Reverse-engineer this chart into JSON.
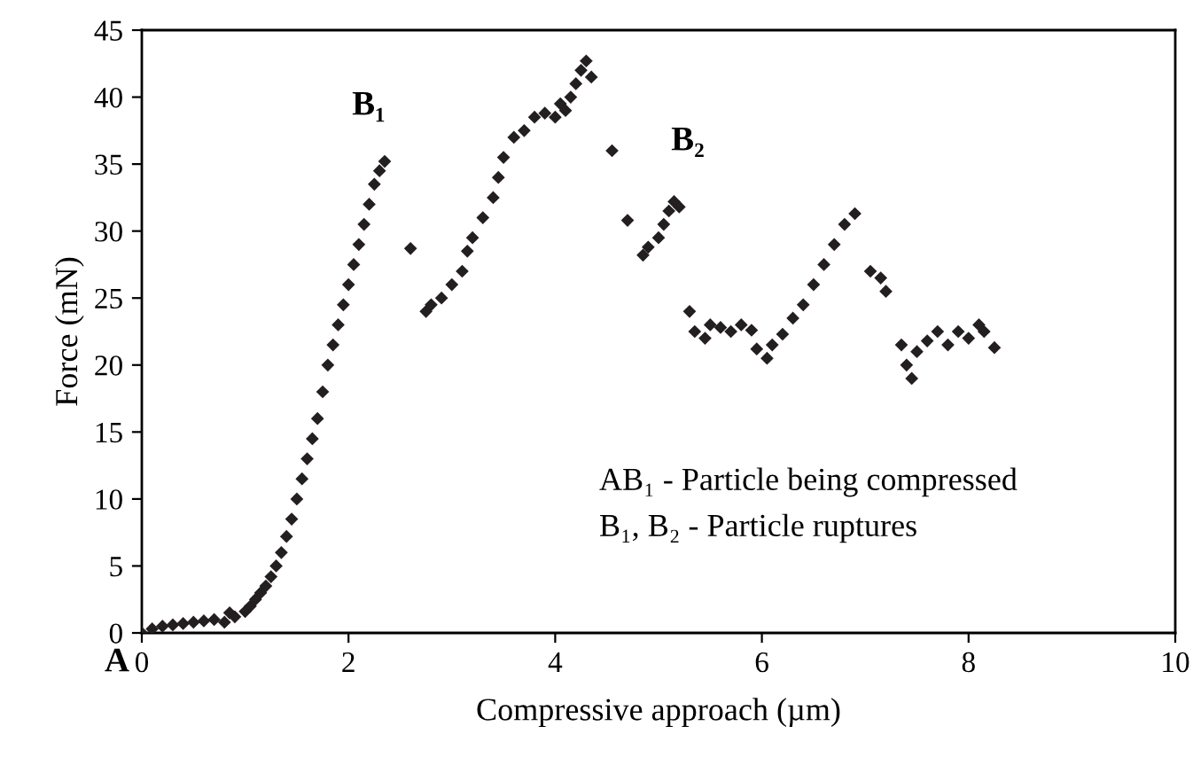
{
  "chart_data": {
    "type": "scatter",
    "xlabel": "Compressive approach (µm)",
    "ylabel": "Force (mN)",
    "xlim": [
      0,
      10
    ],
    "xticks": [
      0,
      2,
      4,
      6,
      8,
      10
    ],
    "ylim": [
      0,
      45
    ],
    "yticks": [
      0,
      5,
      10,
      15,
      20,
      25,
      30,
      35,
      40,
      45
    ],
    "grid": false,
    "legend": false,
    "marker": "diamond",
    "series": [
      {
        "color": "#231f20",
        "x": [
          0,
          0.1,
          0.2,
          0.3,
          0.4,
          0.5,
          0.6,
          0.7,
          0.8,
          0.85,
          0.9,
          1.0,
          1.05,
          1.1,
          1.15,
          1.2,
          1.25,
          1.3,
          1.35,
          1.4,
          1.45,
          1.5,
          1.55,
          1.6,
          1.65,
          1.7,
          1.75,
          1.8,
          1.85,
          1.9,
          1.95,
          2.0,
          2.05,
          2.1,
          2.15,
          2.2,
          2.25,
          2.3,
          2.35,
          2.6,
          2.75,
          2.8,
          2.9,
          3.0,
          3.1,
          3.15,
          3.2,
          3.3,
          3.4,
          3.45,
          3.5,
          3.6,
          3.7,
          3.8,
          3.9,
          4.0,
          4.05,
          4.1,
          4.15,
          4.2,
          4.25,
          4.3,
          4.35,
          4.55,
          4.7,
          4.85,
          4.9,
          5.0,
          5.05,
          5.1,
          5.15,
          5.2,
          5.3,
          5.35,
          5.45,
          5.5,
          5.6,
          5.7,
          5.8,
          5.9,
          5.95,
          6.05,
          6.1,
          6.2,
          6.3,
          6.4,
          6.5,
          6.6,
          6.7,
          6.8,
          6.9,
          7.05,
          7.15,
          7.2,
          7.35,
          7.4,
          7.45,
          7.5,
          7.6,
          7.7,
          7.8,
          7.9,
          8.0,
          8.1,
          8.15,
          8.25
        ],
        "values": [
          0,
          0.3,
          0.5,
          0.6,
          0.7,
          0.8,
          0.9,
          1.0,
          0.8,
          1.5,
          1.2,
          1.6,
          2.0,
          2.5,
          3.0,
          3.5,
          4.2,
          5.0,
          6.0,
          7.2,
          8.5,
          10,
          11.5,
          13,
          14.5,
          16,
          18,
          20,
          21.5,
          23,
          24.5,
          26,
          27.5,
          29,
          30.5,
          32,
          33.5,
          34.5,
          35.2,
          28.7,
          24,
          24.5,
          25,
          26,
          27,
          28.5,
          29.5,
          31,
          32.5,
          34,
          35.5,
          37,
          37.5,
          38.5,
          38.8,
          38.5,
          39.5,
          39.0,
          40,
          41,
          42,
          42.7,
          41.5,
          36,
          30.8,
          28.2,
          28.8,
          29.5,
          30.5,
          31.5,
          32.2,
          31.8,
          24,
          22.5,
          22,
          23,
          22.8,
          22.5,
          23,
          22.6,
          21.2,
          20.5,
          21.5,
          22.3,
          23.5,
          24.5,
          26,
          27.5,
          29,
          30.5,
          31.3,
          27,
          26.5,
          25.5,
          21.5,
          20,
          19,
          21,
          21.8,
          22.5,
          21.5,
          22.5,
          22,
          23,
          22.5,
          21.3
        ]
      }
    ],
    "annotations": [
      "B₁",
      "B₂",
      "A",
      "AB₁ - Particle being compressed",
      "B₁, B₂ - Particle ruptures"
    ]
  }
}
